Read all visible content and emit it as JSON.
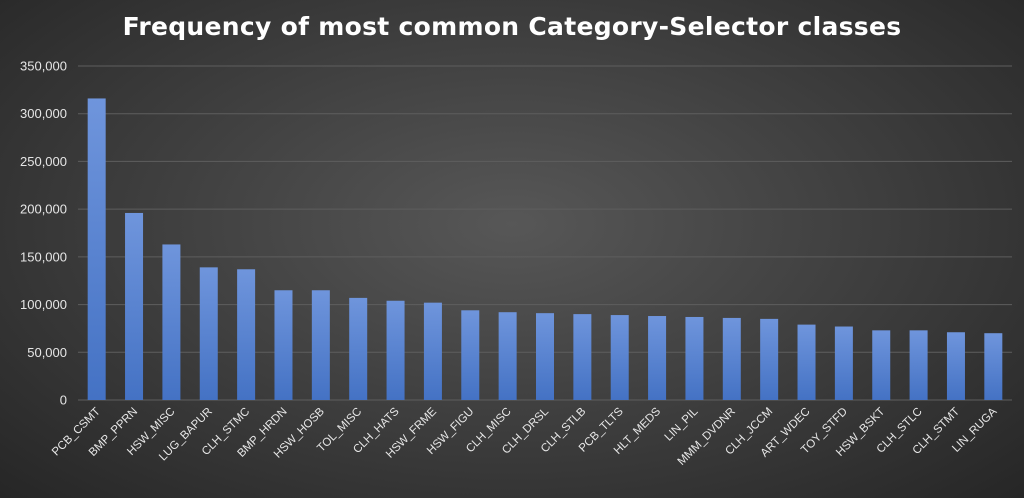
{
  "chart_data": {
    "type": "bar",
    "title": "Frequency of most common Category-Selector classes",
    "xlabel": "",
    "ylabel": "",
    "ylim": [
      0,
      350000
    ],
    "yticks": [
      0,
      50000,
      100000,
      150000,
      200000,
      250000,
      300000,
      350000
    ],
    "ytick_labels": [
      "0",
      "50,000",
      "100,000",
      "150,000",
      "200,000",
      "250,000",
      "300,000",
      "350,000"
    ],
    "grid": true,
    "legend": "none",
    "bar_color": "#4472c4",
    "categories": [
      "PCB_CSMT",
      "BMP_PPRN",
      "HSW_MISC",
      "LUG_BAPUR",
      "CLH_STMC",
      "BMP_HRDN",
      "HSW_HOSB",
      "TOL_MISC",
      "CLH_HATS",
      "HSW_FRME",
      "HSW_FIGU",
      "CLH_MISC",
      "CLH_DRSL",
      "CLH_STLB",
      "PCB_TLTS",
      "HLT_MEDS",
      "LIN_PIL",
      "MMM_DVDNR",
      "CLH_JCCM",
      "ART_WDEC",
      "TOY_STFD",
      "HSW_BSKT",
      "CLH_STLC",
      "CLH_STMT",
      "LIN_RUGA"
    ],
    "values": [
      316000,
      196000,
      163000,
      139000,
      137000,
      115000,
      115000,
      107000,
      104000,
      102000,
      94000,
      92000,
      91000,
      90000,
      89000,
      88000,
      87000,
      86000,
      85000,
      79000,
      77000,
      73000,
      73000,
      71000,
      70000
    ]
  }
}
